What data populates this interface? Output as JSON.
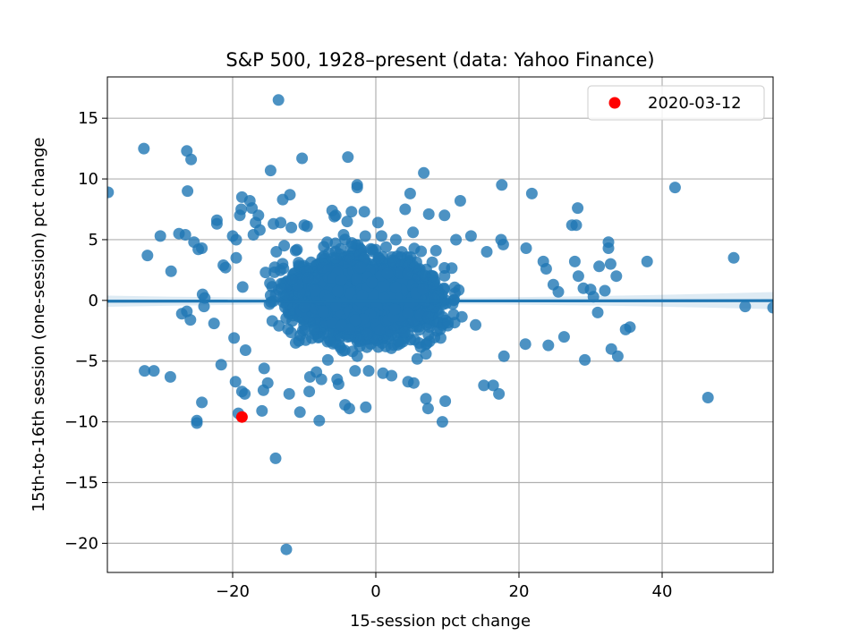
{
  "chart_data": {
    "type": "scatter",
    "title": "S&P 500, 1928–present (data: Yahoo Finance)",
    "xlabel": "15-session pct change",
    "ylabel": "15th-to-16th session (one-session) pct change",
    "xlim": [
      -37.5,
      55.5
    ],
    "ylim": [
      -22.4,
      18.4
    ],
    "x_ticks": [
      -20,
      0,
      20,
      40
    ],
    "x_tick_labels": [
      "−20",
      "0",
      "20",
      "40"
    ],
    "y_ticks": [
      15,
      10,
      5,
      0,
      -5,
      -10,
      -15,
      -20
    ],
    "y_tick_labels": [
      "15",
      "10",
      "5",
      "0",
      "−5",
      "−10",
      "−15",
      "−20"
    ],
    "grid": true,
    "legend": {
      "placement": "upper-right",
      "entries": [
        "2020-03-12"
      ]
    },
    "colors": {
      "points": "#1f77b4",
      "highlight": "#ff0000",
      "regression": "#1f77b4",
      "ci_band": "#1f77b4"
    },
    "series": [
      {
        "kind": "scatter",
        "points": [
          [
            -37.4,
            8.9
          ],
          [
            -32.4,
            12.5
          ],
          [
            -31.9,
            3.7
          ],
          [
            -32.3,
            -5.8
          ],
          [
            -31.0,
            -5.8
          ],
          [
            -30.1,
            5.3
          ],
          [
            -28.6,
            2.4
          ],
          [
            -28.7,
            -6.3
          ],
          [
            -27.5,
            5.5
          ],
          [
            -26.6,
            5.4
          ],
          [
            -26.4,
            12.3
          ],
          [
            -25.8,
            11.6
          ],
          [
            -26.3,
            9.0
          ],
          [
            -25.4,
            4.8
          ],
          [
            -24.8,
            4.2
          ],
          [
            -24.3,
            4.3
          ],
          [
            -25.0,
            -9.9
          ],
          [
            -25.0,
            -10.1
          ],
          [
            -24.3,
            -8.4
          ],
          [
            -27.1,
            -1.1
          ],
          [
            -26.4,
            -0.9
          ],
          [
            -25.9,
            -1.6
          ],
          [
            -24.2,
            0.5
          ],
          [
            -23.9,
            0.2
          ],
          [
            -24.0,
            -0.5
          ],
          [
            -22.6,
            -1.9
          ],
          [
            -22.2,
            6.6
          ],
          [
            -22.2,
            6.3
          ],
          [
            -21.6,
            -5.3
          ],
          [
            -21.3,
            2.9
          ],
          [
            -21.0,
            2.7
          ],
          [
            -20.0,
            5.3
          ],
          [
            -19.5,
            5.0
          ],
          [
            -19.5,
            3.5
          ],
          [
            -19.8,
            -3.1
          ],
          [
            -19.2,
            -9.3
          ],
          [
            -19.6,
            -6.7
          ],
          [
            -19.0,
            7.0
          ],
          [
            -18.8,
            7.5
          ],
          [
            -18.7,
            8.5
          ],
          [
            -18.6,
            1.1
          ],
          [
            -18.7,
            -7.5
          ],
          [
            -18.3,
            -7.7
          ],
          [
            -18.2,
            -4.1
          ],
          [
            -17.6,
            8.2
          ],
          [
            -17.3,
            7.6
          ],
          [
            -16.8,
            6.4
          ],
          [
            -17.1,
            5.4
          ],
          [
            -16.4,
            7.0
          ],
          [
            -16.2,
            5.8
          ],
          [
            -15.9,
            -9.1
          ],
          [
            -15.6,
            -5.6
          ],
          [
            -15.7,
            -7.4
          ],
          [
            -15.1,
            -6.8
          ],
          [
            -14.7,
            10.7
          ],
          [
            -14.3,
            6.3
          ],
          [
            -13.9,
            4.0
          ],
          [
            -13.6,
            16.5
          ],
          [
            -13.3,
            6.4
          ],
          [
            -13.0,
            8.3
          ],
          [
            -12.8,
            4.5
          ],
          [
            -12.0,
            8.7
          ],
          [
            -11.8,
            6.0
          ],
          [
            -11.2,
            4.1
          ],
          [
            -11.2,
            -3.5
          ],
          [
            -14.0,
            -13.0
          ],
          [
            -12.5,
            -20.5
          ],
          [
            -12.1,
            -7.7
          ],
          [
            -10.6,
            -9.2
          ],
          [
            -10.3,
            11.7
          ],
          [
            -10.0,
            6.2
          ],
          [
            -9.6,
            6.1
          ],
          [
            -9.3,
            -7.5
          ],
          [
            -9.2,
            -6.3
          ],
          [
            -8.3,
            -5.9
          ],
          [
            -7.9,
            -9.9
          ],
          [
            -7.6,
            -6.5
          ],
          [
            -6.8,
            4.8
          ],
          [
            -6.7,
            -4.9
          ],
          [
            -6.1,
            7.4
          ],
          [
            -5.8,
            6.9
          ],
          [
            -5.6,
            7.0
          ],
          [
            -5.2,
            -6.9
          ],
          [
            -5.4,
            -6.5
          ],
          [
            -4.5,
            5.4
          ],
          [
            -4.3,
            -8.6
          ],
          [
            -4.0,
            6.5
          ],
          [
            -3.9,
            11.8
          ],
          [
            -3.7,
            -8.9
          ],
          [
            -3.4,
            7.3
          ],
          [
            -2.6,
            9.5
          ],
          [
            -2.6,
            9.3
          ],
          [
            -2.9,
            -5.8
          ],
          [
            -1.6,
            7.3
          ],
          [
            -1.4,
            -8.8
          ],
          [
            -1.0,
            -5.8
          ],
          [
            0.3,
            6.4
          ],
          [
            0.8,
            5.3
          ],
          [
            1.0,
            -6.0
          ],
          [
            1.4,
            -3.8
          ],
          [
            2.2,
            -6.2
          ],
          [
            2.8,
            5.0
          ],
          [
            4.1,
            7.5
          ],
          [
            4.5,
            -6.7
          ],
          [
            4.8,
            8.8
          ],
          [
            5.2,
            5.6
          ],
          [
            5.3,
            -6.8
          ],
          [
            6.7,
            10.5
          ],
          [
            7.0,
            -4.4
          ],
          [
            7.0,
            -8.1
          ],
          [
            7.3,
            -8.9
          ],
          [
            7.4,
            7.1
          ],
          [
            8.4,
            4.1
          ],
          [
            9.3,
            -10.0
          ],
          [
            9.6,
            7.0
          ],
          [
            9.7,
            -8.3
          ],
          [
            11.2,
            5.0
          ],
          [
            11.8,
            8.2
          ],
          [
            13.3,
            5.3
          ],
          [
            15.1,
            -7.0
          ],
          [
            16.4,
            -7.0
          ],
          [
            17.2,
            -7.7
          ],
          [
            17.6,
            9.5
          ],
          [
            17.9,
            -4.6
          ],
          [
            15.5,
            4.0
          ],
          [
            17.5,
            5.0
          ],
          [
            17.8,
            4.6
          ],
          [
            21.0,
            4.3
          ],
          [
            21.8,
            8.8
          ],
          [
            23.4,
            3.2
          ],
          [
            23.8,
            2.6
          ],
          [
            20.9,
            -3.6
          ],
          [
            24.1,
            -3.7
          ],
          [
            24.8,
            1.3
          ],
          [
            25.5,
            0.7
          ],
          [
            26.3,
            -3.0
          ],
          [
            27.4,
            6.2
          ],
          [
            28.0,
            6.2
          ],
          [
            28.2,
            7.6
          ],
          [
            27.8,
            3.2
          ],
          [
            28.3,
            2.0
          ],
          [
            29.0,
            1.0
          ],
          [
            29.2,
            -4.9
          ],
          [
            30.0,
            0.9
          ],
          [
            30.4,
            0.3
          ],
          [
            31.2,
            2.8
          ],
          [
            31.0,
            -1.0
          ],
          [
            32.0,
            0.8
          ],
          [
            32.5,
            4.8
          ],
          [
            32.5,
            4.3
          ],
          [
            32.8,
            3.0
          ],
          [
            32.9,
            -4.0
          ],
          [
            33.6,
            2.0
          ],
          [
            33.8,
            -4.6
          ],
          [
            34.9,
            -2.4
          ],
          [
            35.5,
            -2.2
          ],
          [
            37.9,
            3.2
          ],
          [
            41.8,
            9.3
          ],
          [
            46.4,
            -8.0
          ],
          [
            50.0,
            3.5
          ],
          [
            51.6,
            -0.5
          ],
          [
            55.5,
            -0.6
          ]
        ]
      },
      {
        "kind": "cluster",
        "center": [
          -1.5,
          0.2
        ],
        "spread": [
          6.8,
          2.2
        ],
        "count": 2600
      },
      {
        "kind": "highlight",
        "name": "2020-03-12",
        "points": [
          [
            -18.7,
            -9.6
          ]
        ]
      }
    ],
    "regression": {
      "slope": 0.0005,
      "intercept": -0.05
    }
  }
}
